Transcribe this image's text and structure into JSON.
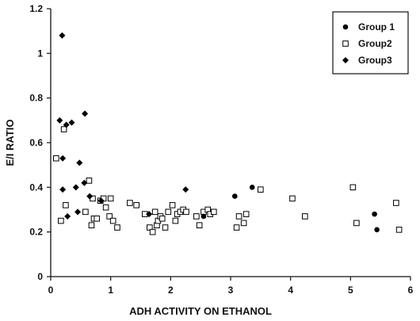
{
  "chart_data": {
    "type": "scatter",
    "xlabel": "ADH ACTIVITY ON ETHANOL",
    "ylabel": "E/I RATIO",
    "xlim": [
      0,
      6
    ],
    "ylim": [
      0,
      1.2
    ],
    "x_ticks": [
      "0",
      "1",
      "2",
      "3",
      "4",
      "5",
      "6"
    ],
    "y_ticks": [
      "0",
      "0.2",
      "0.4",
      "0.6",
      "0.8",
      "1",
      "1.2"
    ],
    "grid": false,
    "legend_position": "top-right",
    "series": [
      {
        "name": "Group 1",
        "marker": "circle",
        "points": [
          [
            2.55,
            0.27
          ],
          [
            3.07,
            0.36
          ],
          [
            3.36,
            0.4
          ],
          [
            5.4,
            0.28
          ],
          [
            5.44,
            0.21
          ]
        ]
      },
      {
        "name": "Group2",
        "marker": "square",
        "points": [
          [
            0.09,
            0.53
          ],
          [
            0.17,
            0.25
          ],
          [
            0.22,
            0.66
          ],
          [
            0.25,
            0.32
          ],
          [
            0.58,
            0.29
          ],
          [
            0.64,
            0.43
          ],
          [
            0.68,
            0.23
          ],
          [
            0.7,
            0.35
          ],
          [
            0.72,
            0.26
          ],
          [
            0.77,
            0.26
          ],
          [
            0.83,
            0.34
          ],
          [
            0.88,
            0.35
          ],
          [
            0.92,
            0.31
          ],
          [
            0.98,
            0.27
          ],
          [
            1.0,
            0.35
          ],
          [
            1.04,
            0.25
          ],
          [
            1.11,
            0.22
          ],
          [
            1.32,
            0.33
          ],
          [
            1.43,
            0.32
          ],
          [
            1.57,
            0.28
          ],
          [
            1.65,
            0.22
          ],
          [
            1.7,
            0.2
          ],
          [
            1.74,
            0.29
          ],
          [
            1.77,
            0.23
          ],
          [
            1.79,
            0.25
          ],
          [
            1.83,
            0.27
          ],
          [
            1.86,
            0.26
          ],
          [
            1.91,
            0.22
          ],
          [
            1.96,
            0.29
          ],
          [
            2.03,
            0.32
          ],
          [
            2.08,
            0.25
          ],
          [
            2.11,
            0.28
          ],
          [
            2.16,
            0.29
          ],
          [
            2.21,
            0.3
          ],
          [
            2.26,
            0.29
          ],
          [
            2.43,
            0.27
          ],
          [
            2.48,
            0.23
          ],
          [
            2.55,
            0.29
          ],
          [
            2.62,
            0.3
          ],
          [
            2.66,
            0.28
          ],
          [
            2.72,
            0.29
          ],
          [
            3.1,
            0.22
          ],
          [
            3.14,
            0.27
          ],
          [
            3.22,
            0.24
          ],
          [
            3.26,
            0.28
          ],
          [
            3.5,
            0.39
          ],
          [
            4.03,
            0.35
          ],
          [
            4.24,
            0.27
          ],
          [
            5.04,
            0.4
          ],
          [
            5.1,
            0.24
          ],
          [
            5.76,
            0.33
          ],
          [
            5.81,
            0.21
          ]
        ]
      },
      {
        "name": "Group3",
        "marker": "diamond",
        "points": [
          [
            0.15,
            0.7
          ],
          [
            0.19,
            1.08
          ],
          [
            0.2,
            0.39
          ],
          [
            0.2,
            0.53
          ],
          [
            0.26,
            0.68
          ],
          [
            0.28,
            0.27
          ],
          [
            0.35,
            0.69
          ],
          [
            0.42,
            0.4
          ],
          [
            0.45,
            0.29
          ],
          [
            0.48,
            0.51
          ],
          [
            0.56,
            0.42
          ],
          [
            0.57,
            0.73
          ],
          [
            0.65,
            0.36
          ],
          [
            0.84,
            0.34
          ],
          [
            1.64,
            0.28
          ],
          [
            2.25,
            0.39
          ]
        ]
      }
    ]
  }
}
